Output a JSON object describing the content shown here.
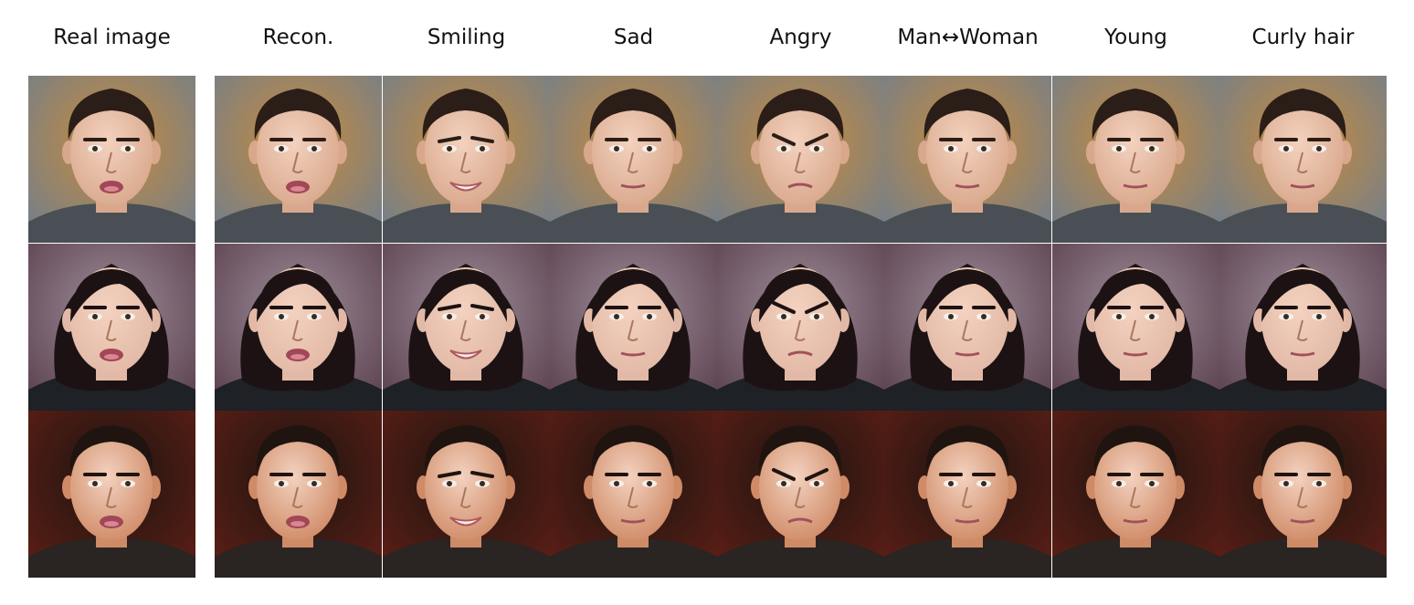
{
  "figure": {
    "column_headers": [
      "Real image",
      "Recon.",
      "Smiling",
      "Sad",
      "Angry",
      "Man↔Woman",
      "Young",
      "Curly hair"
    ],
    "rows": [
      {
        "subject": "curly-haired man, mouth open",
        "background_color": "#6f7f8f",
        "background_accent": "#c98a3a",
        "skin_color": "#d9a88c",
        "hair_color": "#2b1d17",
        "shirt_color": "#4a4f55",
        "hair_style": "short-curly"
      },
      {
        "subject": "woman with dark bob hair",
        "background_color": "#5a3f4d",
        "background_accent": "#9d8c98",
        "skin_color": "#e2b9a6",
        "hair_color": "#1c1213",
        "shirt_color": "#1e2126",
        "hair_style": "bob"
      },
      {
        "subject": "short-haired man, red background",
        "background_color": "#5e1f16",
        "background_accent": "#1c1410",
        "skin_color": "#cf8a66",
        "hair_color": "#1f140f",
        "shirt_color": "#2a2422",
        "hair_style": "short"
      }
    ],
    "column_expressions": [
      "neutral-open",
      "neutral-open",
      "smile",
      "neutral",
      "frown",
      "neutral",
      "neutral",
      "neutral"
    ]
  }
}
